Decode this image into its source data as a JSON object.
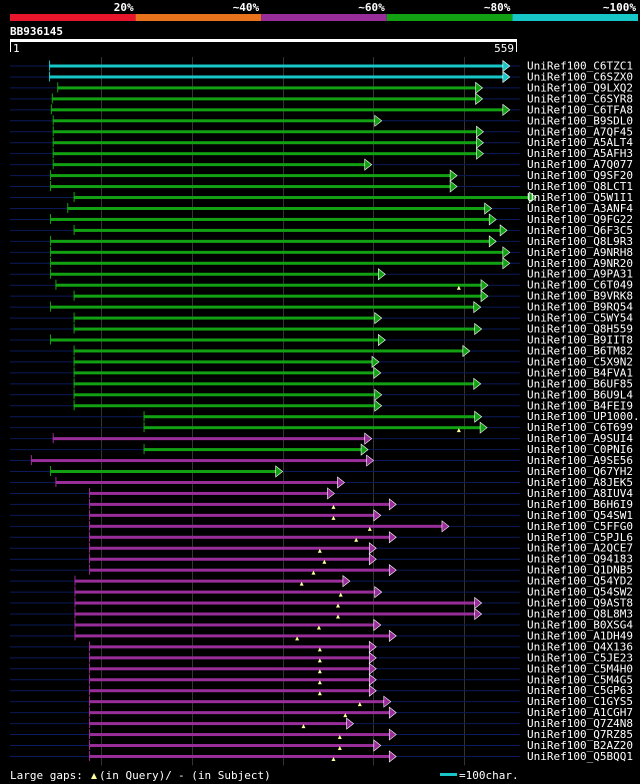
{
  "chart_data": {
    "type": "alignment-overview",
    "query_id": "BB936145",
    "query_start": "1",
    "query_end": "559",
    "query_length": 559,
    "identity_scale": [
      {
        "label": "20%",
        "color": "#e8162d"
      },
      {
        "label": "~40%",
        "color": "#e8731c"
      },
      {
        "label": "~60%",
        "color": "#992d99"
      },
      {
        "label": "~80%",
        "color": "#12a112"
      },
      {
        "label": "~100%",
        "color": "#17c6c6"
      }
    ],
    "hits": [
      {
        "name": "UniRef100_C6TZC1",
        "start": 44,
        "end": 550,
        "color": "#17c6c6",
        "gaps": []
      },
      {
        "name": "UniRef100_C6SZX0",
        "start": 44,
        "end": 550,
        "color": "#17c6c6",
        "gaps": []
      },
      {
        "name": "UniRef100_Q9LXQ2",
        "start": 53,
        "end": 520,
        "color": "#12a112",
        "gaps": []
      },
      {
        "name": "UniRef100_C6SYR8",
        "start": 47,
        "end": 520,
        "color": "#12a112",
        "gaps": []
      },
      {
        "name": "UniRef100_C6TFA8",
        "start": 46,
        "end": 550,
        "color": "#12a112",
        "gaps": []
      },
      {
        "name": "UniRef100_B9SDL0",
        "start": 48,
        "end": 409,
        "color": "#12a112",
        "gaps": []
      },
      {
        "name": "UniRef100_A7QF45",
        "start": 48,
        "end": 521,
        "color": "#12a112",
        "gaps": []
      },
      {
        "name": "UniRef100_A5ALT4",
        "start": 48,
        "end": 521,
        "color": "#12a112",
        "gaps": []
      },
      {
        "name": "UniRef100_A5AFH3",
        "start": 48,
        "end": 521,
        "color": "#12a112",
        "gaps": []
      },
      {
        "name": "UniRef100_A7Q077",
        "start": 48,
        "end": 398,
        "color": "#12a112",
        "gaps": []
      },
      {
        "name": "UniRef100_Q9SF20",
        "start": 45,
        "end": 492,
        "color": "#12a112",
        "gaps": []
      },
      {
        "name": "UniRef100_Q8LCT1",
        "start": 45,
        "end": 492,
        "color": "#12a112",
        "gaps": []
      },
      {
        "name": "UniRef100_Q5W1I1",
        "start": 71,
        "end": 579,
        "color": "#12a112",
        "gaps": []
      },
      {
        "name": "UniRef100_A3ANF4",
        "start": 64,
        "end": 530,
        "color": "#12a112",
        "gaps": []
      },
      {
        "name": "UniRef100_Q9FG22",
        "start": 45,
        "end": 535,
        "color": "#12a112",
        "gaps": []
      },
      {
        "name": "UniRef100_Q6F3C5",
        "start": 71,
        "end": 547,
        "color": "#12a112",
        "gaps": []
      },
      {
        "name": "UniRef100_Q8L9R3",
        "start": 45,
        "end": 535,
        "color": "#12a112",
        "gaps": []
      },
      {
        "name": "UniRef100_A9NRH8",
        "start": 45,
        "end": 550,
        "color": "#12a112",
        "gaps": []
      },
      {
        "name": "UniRef100_A9NR20",
        "start": 45,
        "end": 550,
        "color": "#12a112",
        "gaps": []
      },
      {
        "name": "UniRef100_A9PA31",
        "start": 45,
        "end": 413,
        "color": "#12a112",
        "gaps": []
      },
      {
        "name": "UniRef100_C6T049",
        "start": 51,
        "end": 526,
        "color": "#12a112",
        "gaps": [
          {
            "kind": "query",
            "pos": 495
          }
        ]
      },
      {
        "name": "UniRef100_B9VRK8",
        "start": 71,
        "end": 526,
        "color": "#12a112",
        "gaps": []
      },
      {
        "name": "UniRef100_B9RQ54",
        "start": 45,
        "end": 518,
        "color": "#12a112",
        "gaps": []
      },
      {
        "name": "UniRef100_C5WY54",
        "start": 71,
        "end": 409,
        "color": "#12a112",
        "gaps": []
      },
      {
        "name": "UniRef100_Q8H559",
        "start": 71,
        "end": 519,
        "color": "#12a112",
        "gaps": []
      },
      {
        "name": "UniRef100_B9IIT8",
        "start": 45,
        "end": 413,
        "color": "#12a112",
        "gaps": []
      },
      {
        "name": "UniRef100_B6TM82",
        "start": 71,
        "end": 506,
        "color": "#12a112",
        "gaps": []
      },
      {
        "name": "UniRef100_C5X9N2",
        "start": 71,
        "end": 406,
        "color": "#12a112",
        "gaps": []
      },
      {
        "name": "UniRef100_B4FVA1",
        "start": 71,
        "end": 408,
        "color": "#12a112",
        "gaps": []
      },
      {
        "name": "UniRef100_B6UF85",
        "start": 71,
        "end": 518,
        "color": "#12a112",
        "gaps": []
      },
      {
        "name": "UniRef100_B6U9L4",
        "start": 71,
        "end": 409,
        "color": "#12a112",
        "gaps": []
      },
      {
        "name": "UniRef100_B4FEI9",
        "start": 71,
        "end": 409,
        "color": "#12a112",
        "gaps": []
      },
      {
        "name": "UniRef100_UP1000..",
        "start": 148,
        "end": 519,
        "color": "#12a112",
        "gaps": []
      },
      {
        "name": "UniRef100_C6T699",
        "start": 148,
        "end": 525,
        "color": "#12a112",
        "gaps": [
          {
            "kind": "query",
            "pos": 495
          }
        ]
      },
      {
        "name": "UniRef100_A9SUI4",
        "start": 48,
        "end": 398,
        "color": "#992d99",
        "gaps": []
      },
      {
        "name": "UniRef100_C0PNI6",
        "start": 148,
        "end": 394,
        "color": "#12a112",
        "gaps": []
      },
      {
        "name": "UniRef100_A9SE56",
        "start": 24,
        "end": 400,
        "color": "#992d99",
        "gaps": []
      },
      {
        "name": "UniRef100_Q67YH2",
        "start": 45,
        "end": 300,
        "color": "#12a112",
        "gaps": []
      },
      {
        "name": "UniRef100_A8JEK5",
        "start": 51,
        "end": 368,
        "color": "#992d99",
        "gaps": []
      },
      {
        "name": "UniRef100_A8IUV4",
        "start": 88,
        "end": 357,
        "color": "#992d99",
        "gaps": []
      },
      {
        "name": "UniRef100_B6H6I9",
        "start": 88,
        "end": 425,
        "color": "#992d99",
        "gaps": [
          {
            "kind": "query",
            "pos": 357
          }
        ]
      },
      {
        "name": "UniRef100_Q54SW1",
        "start": 88,
        "end": 408,
        "color": "#992d99",
        "gaps": [
          {
            "kind": "query",
            "pos": 357
          }
        ]
      },
      {
        "name": "UniRef100_C5FFG0",
        "start": 88,
        "end": 483,
        "color": "#992d99",
        "gaps": [
          {
            "kind": "query",
            "pos": 397
          }
        ]
      },
      {
        "name": "UniRef100_C5PJL6",
        "start": 88,
        "end": 425,
        "color": "#992d99",
        "gaps": [
          {
            "kind": "query",
            "pos": 382
          }
        ]
      },
      {
        "name": "UniRef100_A2QCE7",
        "start": 88,
        "end": 403,
        "color": "#992d99",
        "gaps": [
          {
            "kind": "query",
            "pos": 342
          }
        ]
      },
      {
        "name": "UniRef100_Q94183",
        "start": 88,
        "end": 403,
        "color": "#992d99",
        "gaps": [
          {
            "kind": "query",
            "pos": 347
          }
        ]
      },
      {
        "name": "UniRef100_Q1DNB5",
        "start": 88,
        "end": 425,
        "color": "#992d99",
        "gaps": [
          {
            "kind": "query",
            "pos": 335
          }
        ]
      },
      {
        "name": "UniRef100_Q54YD2",
        "start": 72,
        "end": 374,
        "color": "#992d99",
        "gaps": [
          {
            "kind": "query",
            "pos": 322
          }
        ]
      },
      {
        "name": "UniRef100_Q54SW2",
        "start": 72,
        "end": 409,
        "color": "#992d99",
        "gaps": [
          {
            "kind": "query",
            "pos": 365
          }
        ]
      },
      {
        "name": "UniRef100_Q9AST8",
        "start": 72,
        "end": 519,
        "color": "#992d99",
        "gaps": [
          {
            "kind": "query",
            "pos": 362
          }
        ]
      },
      {
        "name": "UniRef100_Q8L8M3",
        "start": 72,
        "end": 519,
        "color": "#992d99",
        "gaps": [
          {
            "kind": "query",
            "pos": 362
          }
        ]
      },
      {
        "name": "UniRef100_B0XSG4",
        "start": 72,
        "end": 408,
        "color": "#992d99",
        "gaps": [
          {
            "kind": "query",
            "pos": 341
          }
        ]
      },
      {
        "name": "UniRef100_A1DH49",
        "start": 72,
        "end": 425,
        "color": "#992d99",
        "gaps": [
          {
            "kind": "query",
            "pos": 317
          }
        ]
      },
      {
        "name": "UniRef100_Q4X136",
        "start": 88,
        "end": 403,
        "color": "#992d99",
        "gaps": [
          {
            "kind": "query",
            "pos": 342
          }
        ]
      },
      {
        "name": "UniRef100_C5JE23",
        "start": 88,
        "end": 403,
        "color": "#992d99",
        "gaps": [
          {
            "kind": "query",
            "pos": 342
          }
        ]
      },
      {
        "name": "UniRef100_C5M4H0",
        "start": 88,
        "end": 403,
        "color": "#992d99",
        "gaps": [
          {
            "kind": "query",
            "pos": 342
          }
        ]
      },
      {
        "name": "UniRef100_C5M4G5",
        "start": 88,
        "end": 403,
        "color": "#992d99",
        "gaps": [
          {
            "kind": "query",
            "pos": 342
          }
        ]
      },
      {
        "name": "UniRef100_C5GP63",
        "start": 88,
        "end": 403,
        "color": "#992d99",
        "gaps": [
          {
            "kind": "query",
            "pos": 342
          }
        ]
      },
      {
        "name": "UniRef100_C1GYS5",
        "start": 88,
        "end": 419,
        "color": "#992d99",
        "gaps": [
          {
            "kind": "query",
            "pos": 386
          }
        ]
      },
      {
        "name": "UniRef100_A1CGH7",
        "start": 88,
        "end": 425,
        "color": "#992d99",
        "gaps": [
          {
            "kind": "query",
            "pos": 370
          }
        ]
      },
      {
        "name": "UniRef100_Q7Z4N8",
        "start": 88,
        "end": 378,
        "color": "#992d99",
        "gaps": [
          {
            "kind": "query",
            "pos": 324
          }
        ]
      },
      {
        "name": "UniRef100_Q7RZ85",
        "start": 88,
        "end": 425,
        "color": "#992d99",
        "gaps": [
          {
            "kind": "query",
            "pos": 364
          }
        ]
      },
      {
        "name": "UniRef100_B2AZ20",
        "start": 88,
        "end": 408,
        "color": "#992d99",
        "gaps": [
          {
            "kind": "query",
            "pos": 364
          }
        ]
      },
      {
        "name": "UniRef100_Q5BQQ1",
        "start": 88,
        "end": 425,
        "color": "#992d99",
        "gaps": [
          {
            "kind": "query",
            "pos": 357
          }
        ]
      }
    ]
  },
  "footer": {
    "gaps_legend": "Large gaps:",
    "query_gap_text": "(in Query)/",
    "subject_gap_text": "- (in Subject)",
    "scale_text": "=100char."
  }
}
